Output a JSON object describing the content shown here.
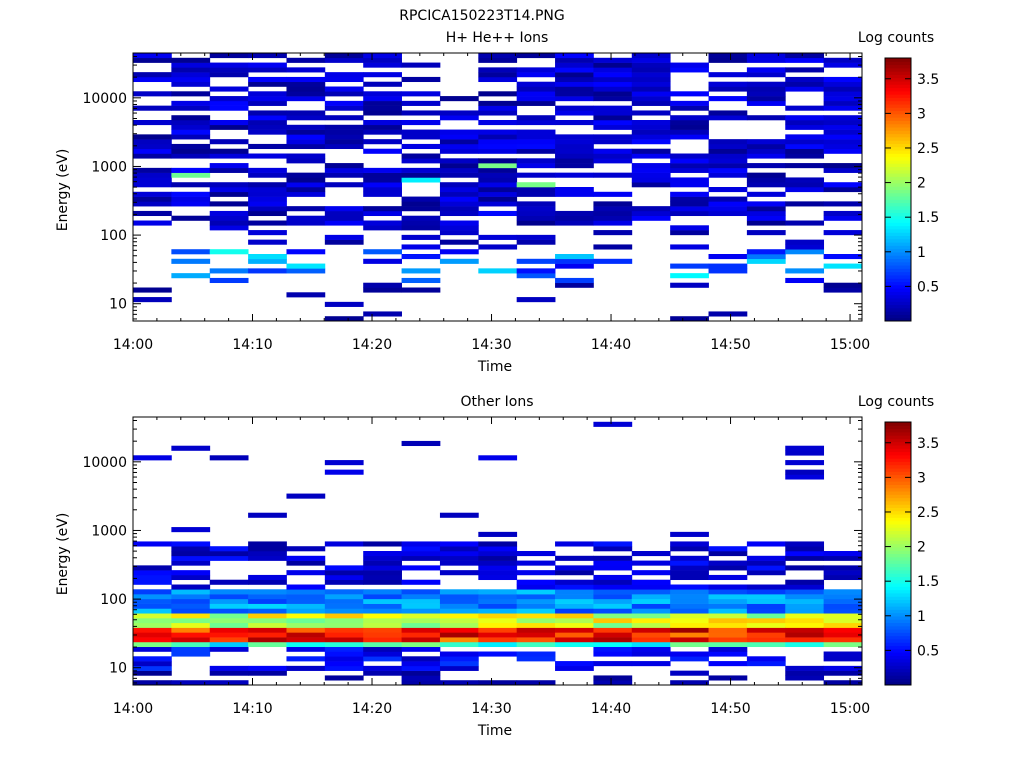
{
  "figure_title": "RPCICA150223T14.PNG",
  "chart_data": [
    {
      "type": "heatmap",
      "title": "H+ He++ Ions",
      "xlabel": "Time",
      "ylabel": "Energy (eV)",
      "x_ticks": [
        "14:00",
        "14:10",
        "14:20",
        "14:30",
        "14:40",
        "14:50",
        "15:00"
      ],
      "x_range_minutes": [
        0,
        61
      ],
      "y_scale": "log",
      "y_ticks": [
        "10",
        "100",
        "1000",
        "10000"
      ],
      "y_range": [
        5.6,
        45000
      ],
      "colorbar": {
        "label": "Log counts",
        "ticks": [
          "0.5",
          "1",
          "1.5",
          "2",
          "2.5",
          "3",
          "3.5"
        ],
        "range": [
          0,
          3.8
        ]
      },
      "grid": "none",
      "note": "Sparse low counts (~0.1–0.5) above 100 eV; moderate (~1.0–1.5) near 20–50 eV."
    },
    {
      "type": "heatmap",
      "title": "Other Ions",
      "xlabel": "Time",
      "ylabel": "Energy (eV)",
      "x_ticks": [
        "14:00",
        "14:10",
        "14:20",
        "14:30",
        "14:40",
        "14:50",
        "15:00"
      ],
      "x_range_minutes": [
        0,
        61
      ],
      "y_scale": "log",
      "y_ticks": [
        "10",
        "100",
        "1000",
        "10000"
      ],
      "y_range": [
        5.6,
        45000
      ],
      "colorbar": {
        "label": "Log counts",
        "ticks": [
          "0.5",
          "1",
          "1.5",
          "2",
          "2.5",
          "3",
          "3.5"
        ],
        "range": [
          0,
          3.8
        ]
      },
      "grid": "none",
      "note": "Strong band (~3.0–3.7) at ~25–35 eV; gradient to ~1 at 100 eV; sparse above 500 eV."
    }
  ]
}
